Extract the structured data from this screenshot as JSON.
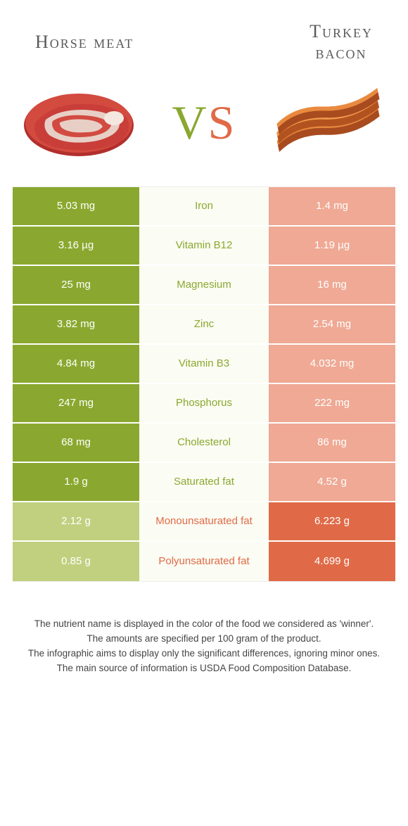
{
  "header": {
    "left_title": "Horse meat",
    "right_title_line1": "Turkey",
    "right_title_line2": "bacon"
  },
  "vs": {
    "v": "V",
    "s": "S"
  },
  "colors": {
    "green": "#8aa82f",
    "green_light": "#c0d07f",
    "orange": "#e06a47",
    "orange_light": "#efa994",
    "mid_bg": "#fbfcf3"
  },
  "rows": [
    {
      "left": "5.03 mg",
      "mid": "Iron",
      "right": "1.4 mg",
      "winner": "left"
    },
    {
      "left": "3.16 µg",
      "mid": "Vitamin B12",
      "right": "1.19 µg",
      "winner": "left"
    },
    {
      "left": "25 mg",
      "mid": "Magnesium",
      "right": "16 mg",
      "winner": "left"
    },
    {
      "left": "3.82 mg",
      "mid": "Zinc",
      "right": "2.54 mg",
      "winner": "left"
    },
    {
      "left": "4.84 mg",
      "mid": "Vitamin B3",
      "right": "4.032 mg",
      "winner": "left"
    },
    {
      "left": "247 mg",
      "mid": "Phosphorus",
      "right": "222 mg",
      "winner": "left"
    },
    {
      "left": "68 mg",
      "mid": "Cholesterol",
      "right": "86 mg",
      "winner": "left"
    },
    {
      "left": "1.9 g",
      "mid": "Saturated fat",
      "right": "4.52 g",
      "winner": "left"
    },
    {
      "left": "2.12 g",
      "mid": "Monounsaturated fat",
      "right": "6.223 g",
      "winner": "right"
    },
    {
      "left": "0.85 g",
      "mid": "Polyunsaturated fat",
      "right": "4.699 g",
      "winner": "right"
    }
  ],
  "footer": {
    "line1": "The nutrient name is displayed in the color of the food we considered as 'winner'.",
    "line2": "The amounts are specified per 100 gram of the product.",
    "line3": "The infographic aims to display only the significant differences, ignoring minor ones.",
    "line4": "The main source of information is USDA Food Composition Database."
  }
}
